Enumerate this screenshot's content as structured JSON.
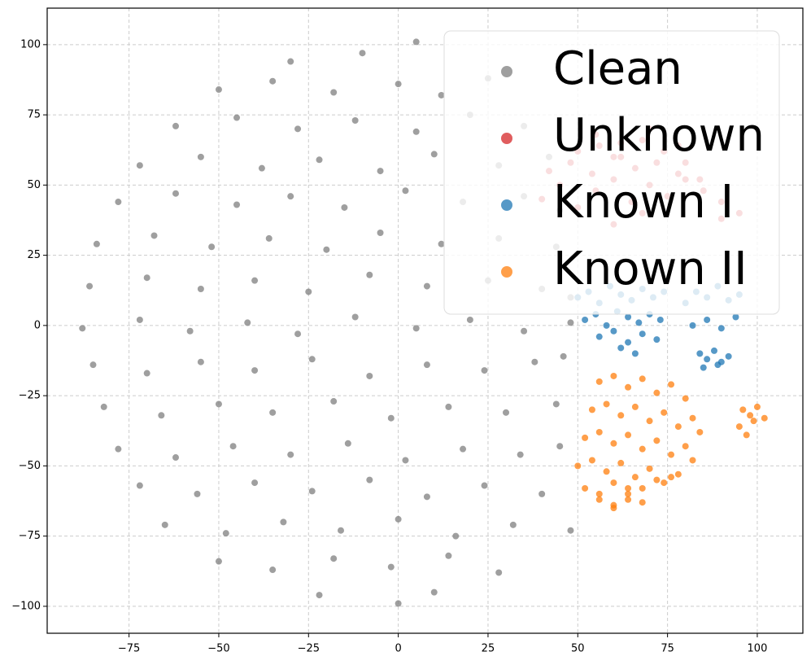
{
  "chart_data": {
    "type": "scatter",
    "grid": true,
    "legend_position": "upper right",
    "xlim": [
      -97.8,
      112.7
    ],
    "ylim": [
      -109.6,
      113
    ],
    "xticks": [
      {
        "value": -75,
        "label": "−75"
      },
      {
        "value": -50,
        "label": "−50"
      },
      {
        "value": -25,
        "label": "−25"
      },
      0,
      25,
      50,
      75,
      100
    ],
    "yticks": [
      {
        "value": -100,
        "label": "−100"
      },
      {
        "value": -75,
        "label": "−75"
      },
      {
        "value": -50,
        "label": "−50"
      },
      {
        "value": -25,
        "label": "−25"
      },
      0,
      25,
      50,
      75,
      100
    ],
    "series": [
      {
        "name": "Clean",
        "color": "#7f7f7f",
        "x": [
          -30,
          -10,
          5,
          -50,
          -35,
          -18,
          0,
          12,
          25,
          -62,
          -45,
          -28,
          -12,
          5,
          20,
          35,
          -72,
          -55,
          -38,
          -22,
          -5,
          10,
          28,
          42,
          -78,
          -62,
          -45,
          -30,
          -15,
          2,
          18,
          35,
          45,
          -84,
          -68,
          -52,
          -36,
          -20,
          -5,
          12,
          28,
          44,
          -86,
          -70,
          -55,
          -40,
          -25,
          -8,
          8,
          25,
          40,
          48,
          -88,
          -72,
          -58,
          -42,
          -28,
          -12,
          5,
          20,
          35,
          48,
          -85,
          -70,
          -55,
          -40,
          -24,
          -8,
          8,
          24,
          38,
          46,
          -82,
          -66,
          -50,
          -35,
          -18,
          -2,
          14,
          30,
          44,
          -78,
          -62,
          -46,
          -30,
          -14,
          2,
          18,
          34,
          45,
          -72,
          -56,
          -40,
          -24,
          -8,
          8,
          24,
          40,
          -65,
          -48,
          -32,
          -16,
          0,
          16,
          32,
          48,
          -50,
          -35,
          -18,
          -2,
          14,
          28,
          -22,
          0,
          10
        ],
        "y": [
          94,
          97,
          101,
          84,
          87,
          83,
          86,
          82,
          88,
          71,
          74,
          70,
          73,
          69,
          75,
          71,
          57,
          60,
          56,
          59,
          55,
          61,
          57,
          60,
          44,
          47,
          43,
          46,
          42,
          48,
          44,
          46,
          41,
          29,
          32,
          28,
          31,
          27,
          33,
          29,
          31,
          28,
          14,
          17,
          13,
          16,
          12,
          18,
          14,
          16,
          13,
          10,
          -1,
          2,
          -2,
          1,
          -3,
          3,
          -1,
          2,
          -2,
          1,
          -14,
          -17,
          -13,
          -16,
          -12,
          -18,
          -14,
          -16,
          -13,
          -11,
          -29,
          -32,
          -28,
          -31,
          -27,
          -33,
          -29,
          -31,
          -28,
          -44,
          -47,
          -43,
          -46,
          -42,
          -48,
          -44,
          -46,
          -43,
          -57,
          -60,
          -56,
          -59,
          -55,
          -61,
          -57,
          -60,
          -71,
          -74,
          -70,
          -73,
          -69,
          -75,
          -71,
          -73,
          -84,
          -87,
          -83,
          -86,
          -82,
          -88,
          -96,
          -99,
          -95
        ]
      },
      {
        "name": "Unknown",
        "color": "#d62728",
        "x": [
          40,
          45,
          50,
          55,
          60,
          65,
          70,
          75,
          80,
          85,
          90,
          95,
          42,
          48,
          54,
          60,
          66,
          72,
          78,
          84,
          90,
          50,
          56,
          62,
          68,
          74,
          80,
          55,
          62,
          70,
          78,
          60,
          68
        ],
        "y": [
          45,
          50,
          42,
          48,
          52,
          44,
          50,
          46,
          52,
          48,
          44,
          40,
          55,
          58,
          54,
          60,
          56,
          58,
          54,
          52,
          38,
          62,
          64,
          60,
          66,
          62,
          58,
          68,
          65,
          70,
          64,
          36,
          40
        ]
      },
      {
        "name": "Known I",
        "color": "#1f77b4",
        "x": [
          50,
          53,
          56,
          59,
          62,
          65,
          68,
          71,
          74,
          52,
          55,
          58,
          61,
          64,
          67,
          70,
          73,
          56,
          60,
          64,
          68,
          72,
          62,
          66,
          80,
          83,
          86,
          89,
          92,
          95,
          82,
          86,
          90,
          94,
          84,
          86,
          88,
          90,
          92,
          85,
          89
        ],
        "y": [
          10,
          12,
          8,
          14,
          11,
          9,
          13,
          10,
          12,
          2,
          4,
          0,
          5,
          3,
          1,
          4,
          2,
          -4,
          -2,
          -6,
          -3,
          -5,
          -8,
          -10,
          8,
          12,
          10,
          14,
          9,
          11,
          0,
          2,
          -1,
          3,
          -10,
          -12,
          -9,
          -13,
          -11,
          -15,
          -14
        ]
      },
      {
        "name": "Known II",
        "color": "#ff7f0e",
        "x": [
          56,
          60,
          64,
          68,
          72,
          76,
          80,
          54,
          58,
          62,
          66,
          70,
          74,
          78,
          82,
          52,
          56,
          60,
          64,
          68,
          72,
          76,
          80,
          84,
          50,
          54,
          58,
          62,
          66,
          70,
          74,
          78,
          82,
          52,
          56,
          60,
          64,
          68,
          72,
          76,
          56,
          60,
          64,
          68,
          60,
          64,
          96,
          98,
          100,
          102,
          95,
          97,
          99
        ],
        "y": [
          -20,
          -18,
          -22,
          -19,
          -24,
          -21,
          -26,
          -30,
          -28,
          -32,
          -29,
          -34,
          -31,
          -36,
          -33,
          -40,
          -38,
          -42,
          -39,
          -44,
          -41,
          -46,
          -43,
          -38,
          -50,
          -48,
          -52,
          -49,
          -54,
          -51,
          -56,
          -53,
          -48,
          -58,
          -60,
          -56,
          -62,
          -58,
          -55,
          -54,
          -62,
          -64,
          -60,
          -63,
          -65,
          -58,
          -30,
          -32,
          -29,
          -33,
          -36,
          -39,
          -34
        ]
      }
    ]
  }
}
